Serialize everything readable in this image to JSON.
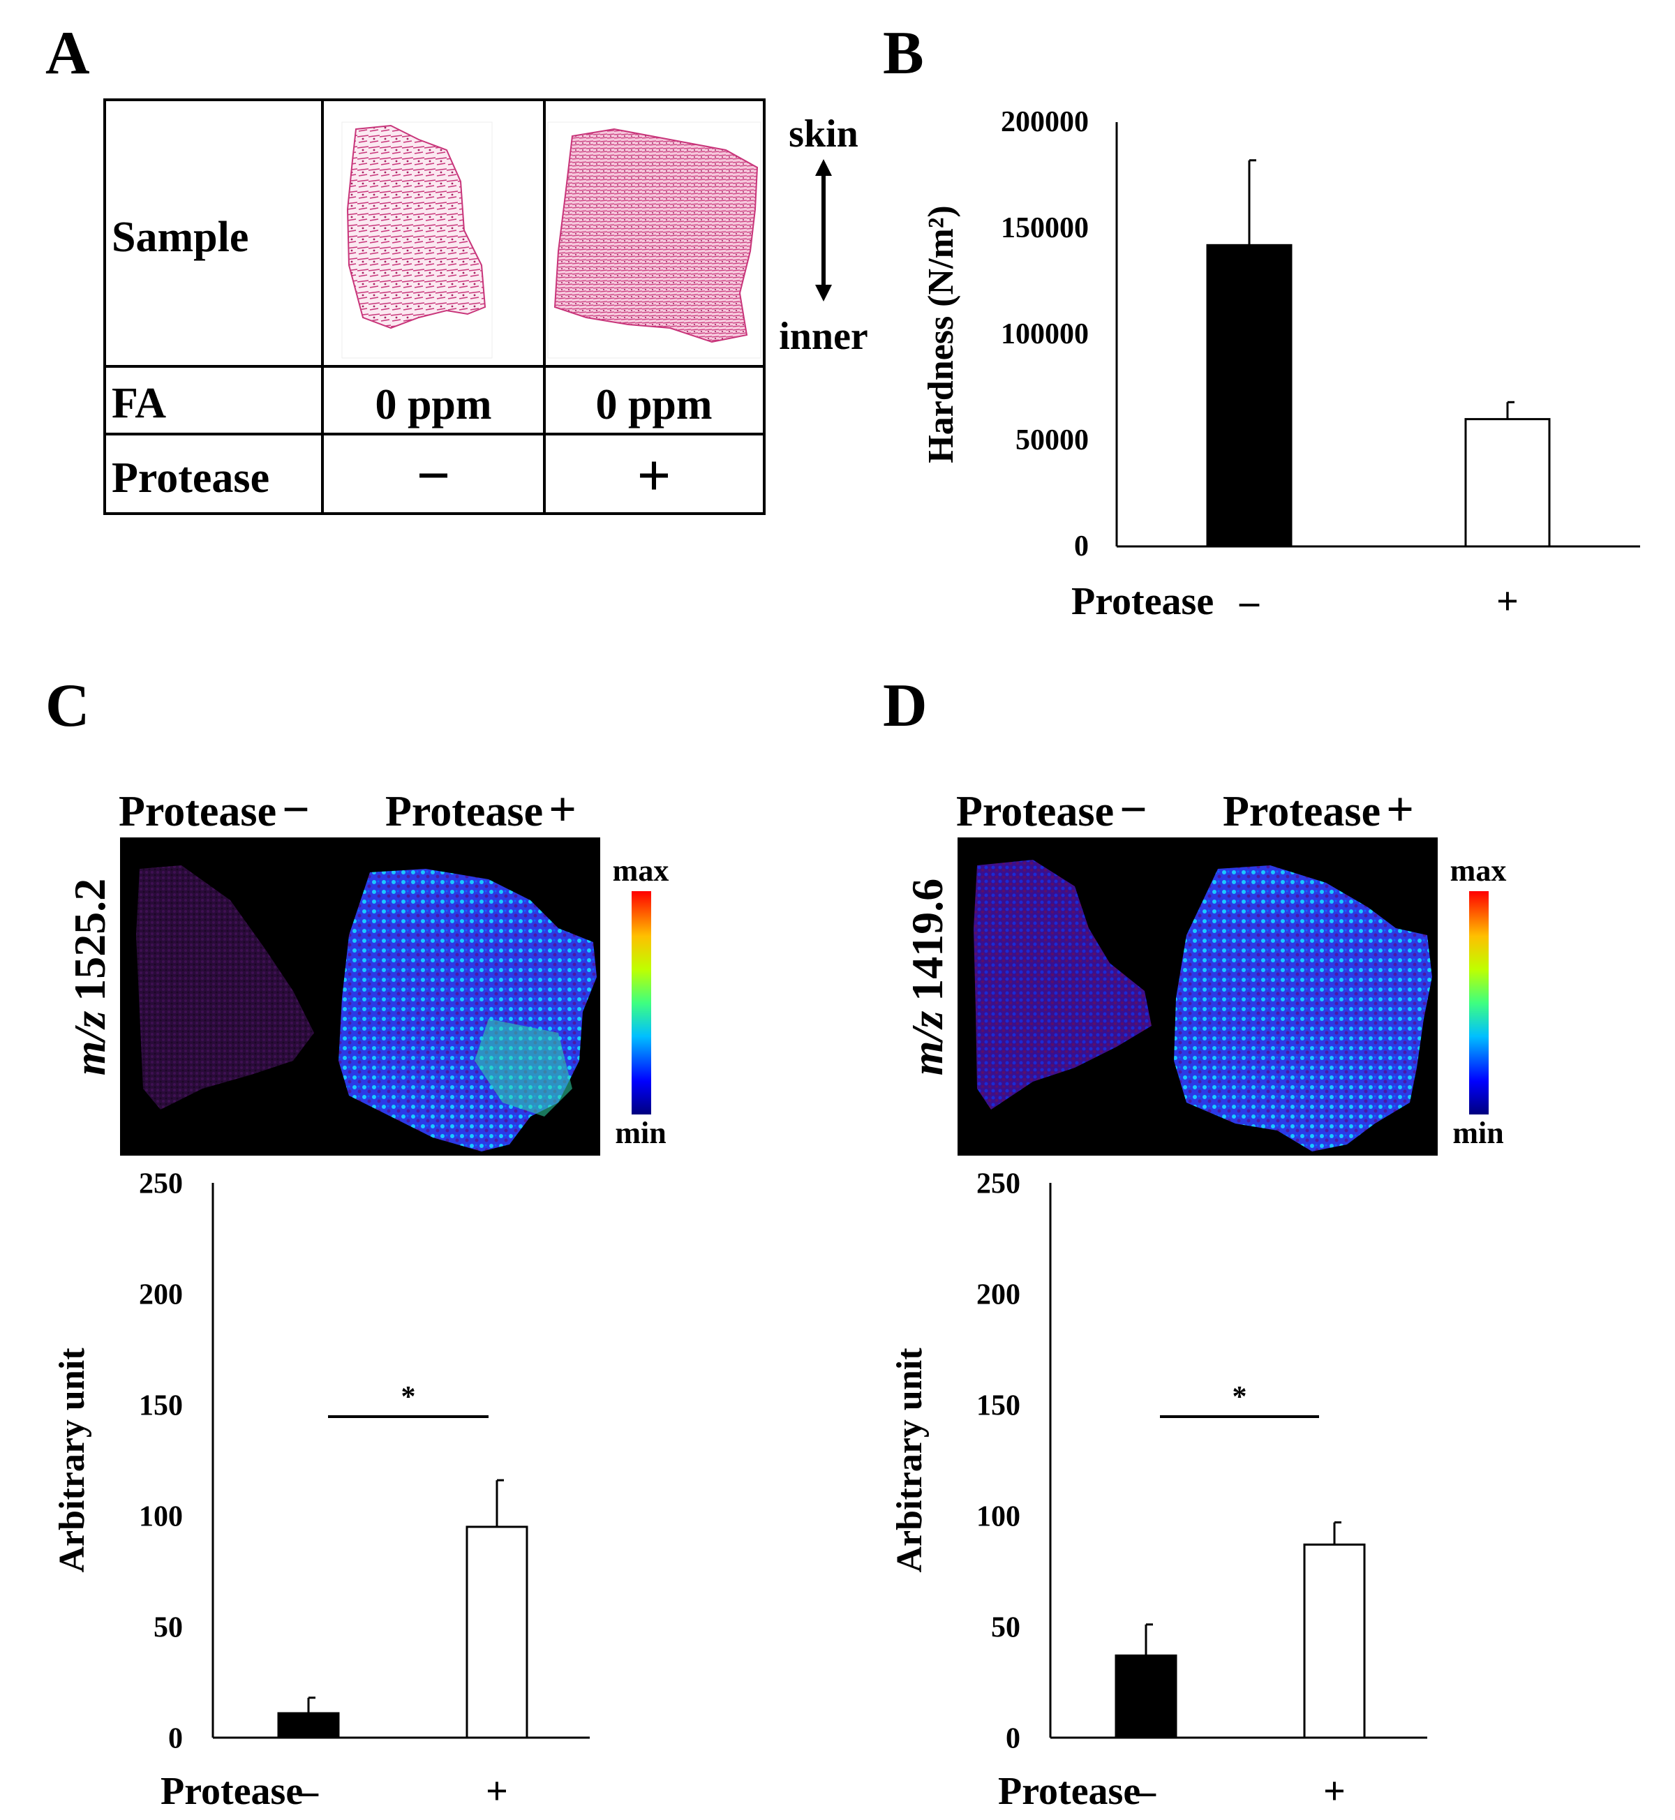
{
  "panels": {
    "A": "A",
    "B": "B",
    "C": "C",
    "D": "D"
  },
  "table_a": {
    "rows": [
      {
        "label": "Sample",
        "c1": "",
        "c2": ""
      },
      {
        "label": "FA",
        "c1": "0 ppm",
        "c2": "0 ppm"
      },
      {
        "label": "Protease",
        "c1": "−",
        "c2": "+"
      }
    ],
    "orientation_top": "skin",
    "orientation_bottom": "inner"
  },
  "ms_images": {
    "c": {
      "title_left": "Protease",
      "sign_left": "−",
      "title_right": "Protease",
      "sign_right": "+",
      "mz_italic": "m/z",
      "mz_value": "1525.2",
      "scale_max": "max",
      "scale_min": "min"
    },
    "d": {
      "title_left": "Protease",
      "sign_left": "−",
      "title_right": "Protease",
      "sign_right": "+",
      "mz_italic": "m/z",
      "mz_value": "1419.6",
      "scale_max": "max",
      "scale_min": "min"
    }
  },
  "colors": {
    "bar_minus": "#000000",
    "bar_plus": "#ffffff",
    "stain": "#c8357a",
    "ms_background": "#000000"
  },
  "chart_data": [
    {
      "id": "B",
      "type": "bar",
      "title": "",
      "categories": [
        "–",
        "+"
      ],
      "category_axis_title": "Protease",
      "values": [
        142000,
        60000
      ],
      "errors": [
        40000,
        8000
      ],
      "ylabel": "Hardness (N/m²)",
      "ylim": [
        0,
        200000
      ],
      "yticks": [
        "0",
        "50000",
        "100000",
        "150000",
        "200000"
      ],
      "significance": null
    },
    {
      "id": "C",
      "type": "bar",
      "title": "",
      "categories": [
        "–",
        "+"
      ],
      "category_axis_title": "Protease",
      "values": [
        11,
        95
      ],
      "errors": [
        7,
        21
      ],
      "ylabel": "Arbitrary unit",
      "ylim": [
        0,
        250
      ],
      "yticks": [
        "0",
        "50",
        "100",
        "150",
        "200",
        "250"
      ],
      "significance": "*"
    },
    {
      "id": "D",
      "type": "bar",
      "title": "",
      "categories": [
        "–",
        "+"
      ],
      "category_axis_title": "Protease",
      "values": [
        37,
        87
      ],
      "errors": [
        14,
        10
      ],
      "ylabel": "Arbitrary unit",
      "ylim": [
        0,
        250
      ],
      "yticks": [
        "0",
        "50",
        "100",
        "150",
        "200",
        "250"
      ],
      "significance": "*"
    }
  ]
}
